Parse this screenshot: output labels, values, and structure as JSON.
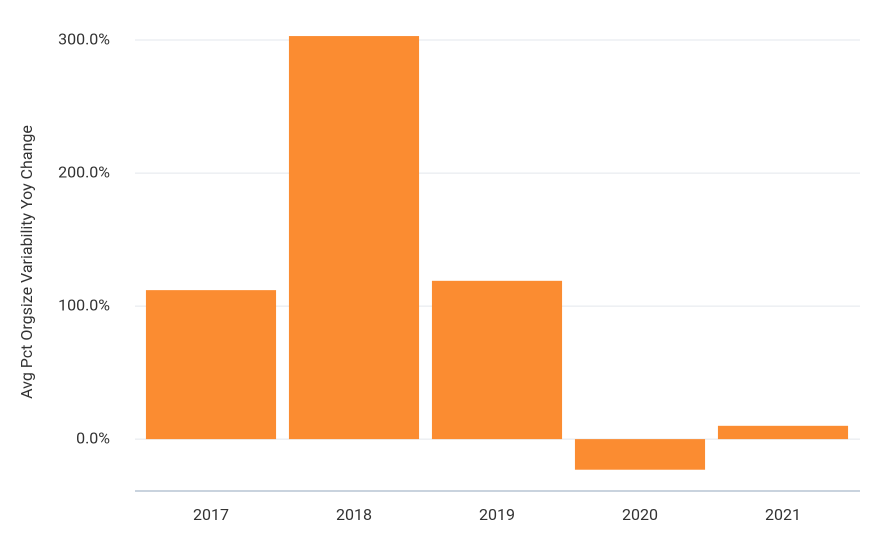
{
  "chart_data": {
    "type": "bar",
    "y_label": "Avg Pct Orgsize Variability Yoy Change",
    "categories": [
      "2017",
      "2018",
      "2019",
      "2020",
      "2021"
    ],
    "values": [
      112,
      303,
      119,
      -23,
      10
    ],
    "color": "#fb8c31",
    "ylim": [
      -39,
      305
    ],
    "yticks": [
      {
        "value": 0,
        "label": "0.0%"
      },
      {
        "value": 100,
        "label": "100.0%"
      },
      {
        "value": 200,
        "label": "200.0%"
      },
      {
        "value": 300,
        "label": "300.0%"
      }
    ],
    "grid": true
  }
}
